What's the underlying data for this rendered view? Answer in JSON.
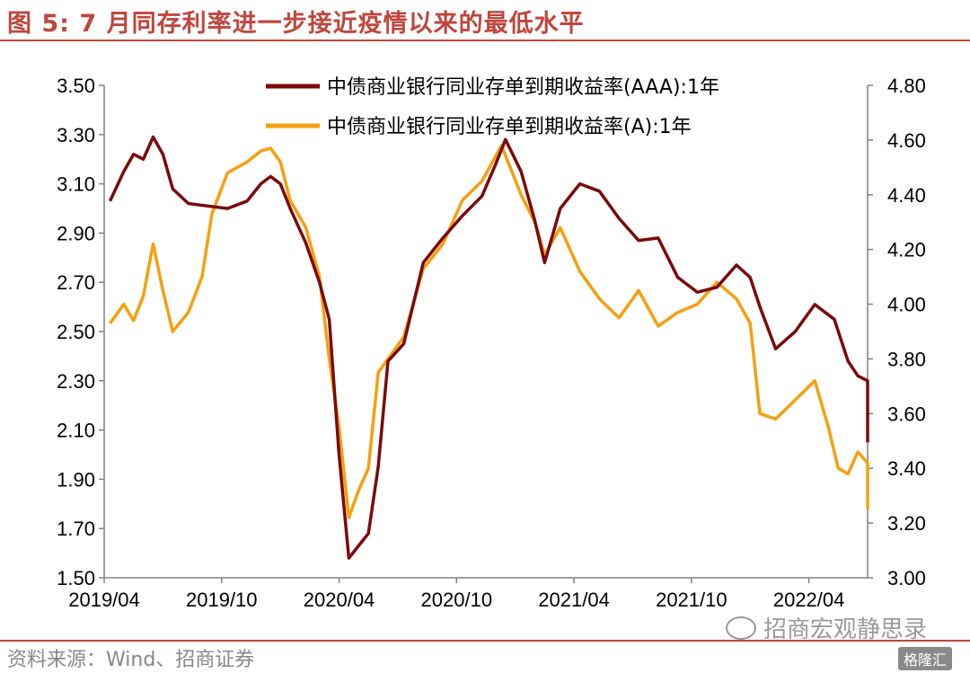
{
  "title": "图 5:  7 月同存利率进一步接近疫情以来的最低水平",
  "source": "资料来源：Wind、招商证券",
  "watermark": "招商宏观静思录",
  "corner_logo": "格隆汇",
  "chart_data": {
    "type": "line",
    "title": "图 5:  7 月同存利率进一步接近疫情以来的最低水平",
    "x_range": [
      "2019/04",
      "2022/07"
    ],
    "x_tick_labels": [
      "2019/04",
      "2019/10",
      "2020/04",
      "2020/10",
      "2021/04",
      "2021/10",
      "2022/04"
    ],
    "left_axis": {
      "ylim": [
        1.5,
        3.5
      ],
      "ticks": [
        "3.50",
        "3.30",
        "3.10",
        "2.90",
        "2.70",
        "2.50",
        "2.30",
        "2.10",
        "1.90",
        "1.70",
        "1.50"
      ]
    },
    "right_axis": {
      "ylim": [
        3.0,
        4.8
      ],
      "ticks": [
        "4.80",
        "4.60",
        "4.40",
        "4.20",
        "4.00",
        "3.80",
        "3.60",
        "3.40",
        "3.20",
        "3.00"
      ]
    },
    "grid": false,
    "legend_position": "top",
    "series": [
      {
        "name": "中债商业银行同业存单到期收益率(AAA):1年",
        "axis": "left",
        "color": "#7b0a0a",
        "points": [
          [
            "2019/04",
            3.03
          ],
          [
            "2019/05",
            3.15
          ],
          [
            "2019/05",
            3.22
          ],
          [
            "2019/06",
            3.2
          ],
          [
            "2019/06",
            3.29
          ],
          [
            "2019/07",
            3.22
          ],
          [
            "2019/07",
            3.08
          ],
          [
            "2019/08",
            3.02
          ],
          [
            "2019/09",
            3.01
          ],
          [
            "2019/10",
            3.0
          ],
          [
            "2019/11",
            3.03
          ],
          [
            "2019/12",
            3.1
          ],
          [
            "2019/12",
            3.13
          ],
          [
            "2020/01",
            3.1
          ],
          [
            "2020/01",
            3.0
          ],
          [
            "2020/02",
            2.86
          ],
          [
            "2020/03",
            2.7
          ],
          [
            "2020/03",
            2.55
          ],
          [
            "2020/04",
            2.0
          ],
          [
            "2020/04",
            1.58
          ],
          [
            "2020/05",
            1.63
          ],
          [
            "2020/05",
            1.68
          ],
          [
            "2020/06",
            1.95
          ],
          [
            "2020/06",
            2.38
          ],
          [
            "2020/07",
            2.45
          ],
          [
            "2020/08",
            2.78
          ],
          [
            "2020/09",
            2.88
          ],
          [
            "2020/10",
            2.97
          ],
          [
            "2020/11",
            3.05
          ],
          [
            "2020/12",
            3.18
          ],
          [
            "2020/12",
            3.28
          ],
          [
            "2021/01",
            3.15
          ],
          [
            "2021/02",
            2.95
          ],
          [
            "2021/02",
            2.78
          ],
          [
            "2021/03",
            3.0
          ],
          [
            "2021/04",
            3.1
          ],
          [
            "2021/05",
            3.07
          ],
          [
            "2021/06",
            2.96
          ],
          [
            "2021/07",
            2.87
          ],
          [
            "2021/08",
            2.88
          ],
          [
            "2021/09",
            2.72
          ],
          [
            "2021/10",
            2.66
          ],
          [
            "2021/11",
            2.68
          ],
          [
            "2021/12",
            2.77
          ],
          [
            "2022/01",
            2.72
          ],
          [
            "2022/01",
            2.6
          ],
          [
            "2022/02",
            2.43
          ],
          [
            "2022/03",
            2.5
          ],
          [
            "2022/04",
            2.61
          ],
          [
            "2022/05",
            2.55
          ],
          [
            "2022/06",
            2.38
          ],
          [
            "2022/06",
            2.32
          ],
          [
            "2022/07",
            2.3
          ],
          [
            "2022/07",
            2.1
          ],
          [
            "2022/07",
            2.05
          ]
        ]
      },
      {
        "name": "中债商业银行同业存单到期收益率(A):1年",
        "axis": "right",
        "color": "#f5a00f",
        "points": [
          [
            "2019/04",
            3.93
          ],
          [
            "2019/05",
            4.0
          ],
          [
            "2019/05",
            3.94
          ],
          [
            "2019/06",
            4.03
          ],
          [
            "2019/06",
            4.22
          ],
          [
            "2019/07",
            4.05
          ],
          [
            "2019/07",
            3.9
          ],
          [
            "2019/08",
            3.97
          ],
          [
            "2019/09",
            4.1
          ],
          [
            "2019/09",
            4.33
          ],
          [
            "2019/10",
            4.48
          ],
          [
            "2019/11",
            4.52
          ],
          [
            "2019/12",
            4.56
          ],
          [
            "2019/12",
            4.57
          ],
          [
            "2020/01",
            4.52
          ],
          [
            "2020/01",
            4.38
          ],
          [
            "2020/02",
            4.28
          ],
          [
            "2020/03",
            4.1
          ],
          [
            "2020/03",
            3.8
          ],
          [
            "2020/04",
            3.55
          ],
          [
            "2020/04",
            3.22
          ],
          [
            "2020/05",
            3.32
          ],
          [
            "2020/05",
            3.4
          ],
          [
            "2020/06",
            3.75
          ],
          [
            "2020/06",
            3.8
          ],
          [
            "2020/07",
            3.88
          ],
          [
            "2020/08",
            4.13
          ],
          [
            "2020/09",
            4.22
          ],
          [
            "2020/10",
            4.38
          ],
          [
            "2020/11",
            4.45
          ],
          [
            "2020/12",
            4.58
          ],
          [
            "2021/01",
            4.4
          ],
          [
            "2021/02",
            4.3
          ],
          [
            "2021/02",
            4.18
          ],
          [
            "2021/03",
            4.28
          ],
          [
            "2021/04",
            4.12
          ],
          [
            "2021/05",
            4.02
          ],
          [
            "2021/06",
            3.95
          ],
          [
            "2021/07",
            4.05
          ],
          [
            "2021/08",
            3.92
          ],
          [
            "2021/09",
            3.97
          ],
          [
            "2021/10",
            4.0
          ],
          [
            "2021/11",
            4.08
          ],
          [
            "2021/12",
            4.02
          ],
          [
            "2022/01",
            3.93
          ],
          [
            "2022/01",
            3.6
          ],
          [
            "2022/02",
            3.58
          ],
          [
            "2022/03",
            3.65
          ],
          [
            "2022/04",
            3.72
          ],
          [
            "2022/05",
            3.55
          ],
          [
            "2022/05",
            3.4
          ],
          [
            "2022/06",
            3.38
          ],
          [
            "2022/06",
            3.46
          ],
          [
            "2022/07",
            3.42
          ],
          [
            "2022/07",
            3.25
          ]
        ]
      }
    ]
  }
}
